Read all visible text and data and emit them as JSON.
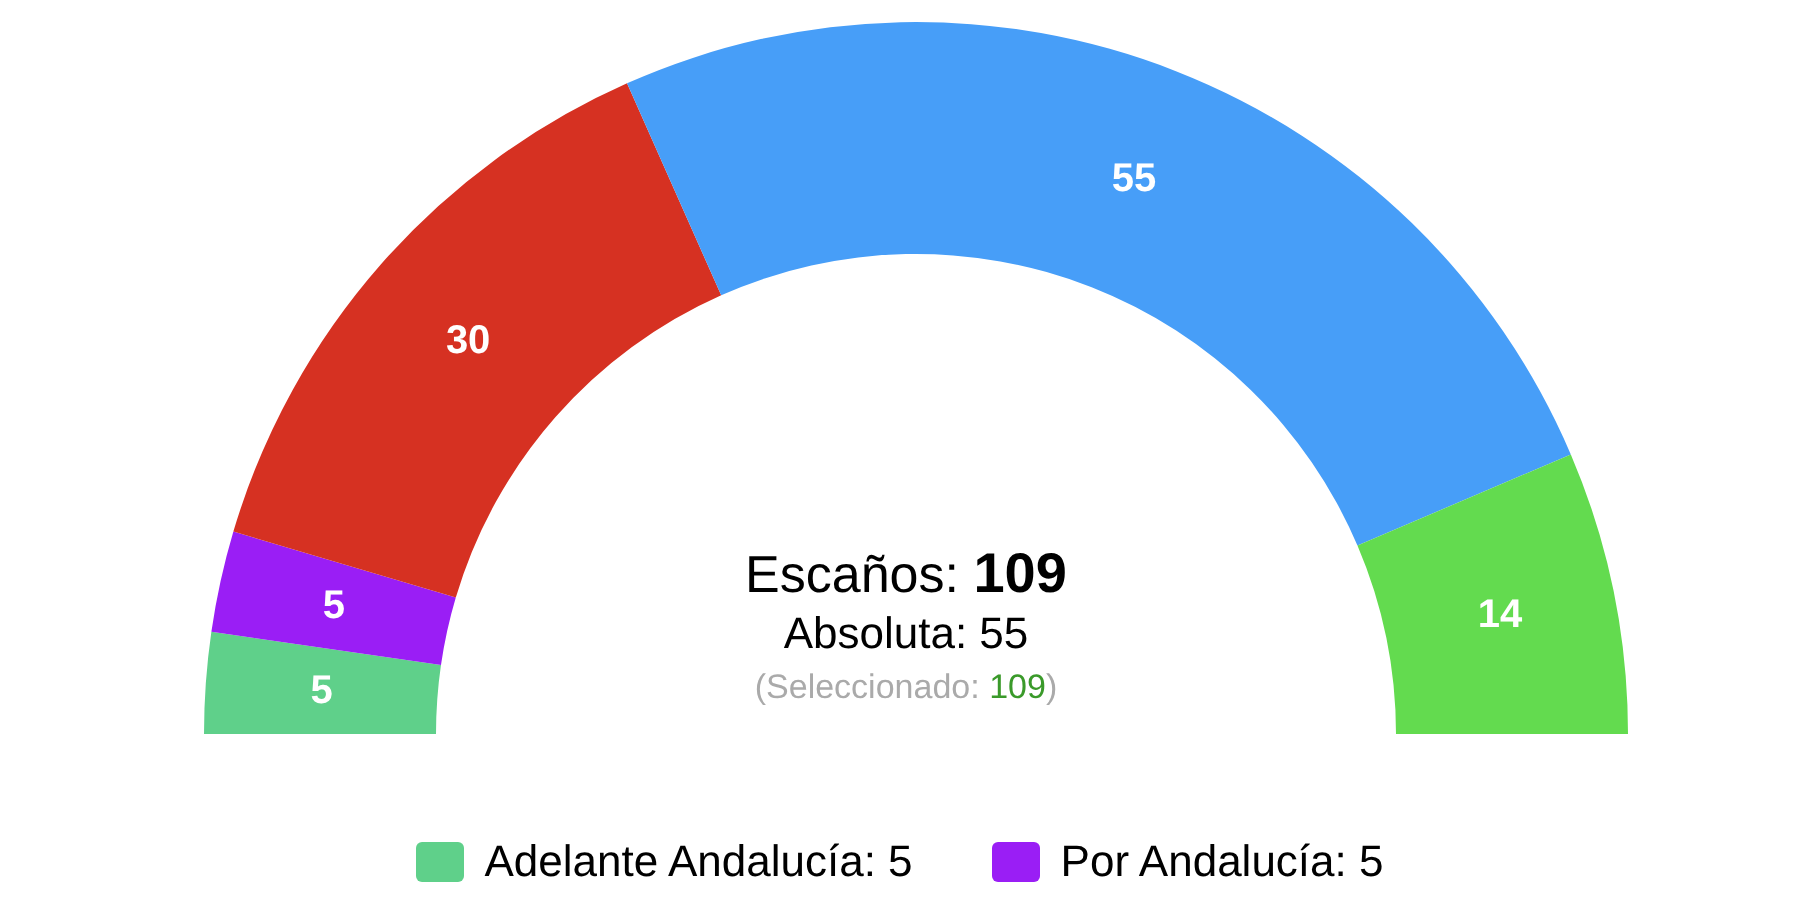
{
  "chart_data": {
    "type": "donut",
    "categories": [
      "Adelante Andalucía: 5",
      "Por Andalucía: 5",
      null,
      null,
      null
    ],
    "values": [
      5,
      5,
      30,
      55,
      14
    ],
    "colors": [
      "#5fd08a",
      "#9a1ef5",
      "#d63122",
      "#479ef8",
      "#63db4f"
    ],
    "data_labels": true,
    "legend": "bottom",
    "annotations": [
      "Escaños: 109",
      "Absoluta: 55",
      "(Seleccionado: 109)"
    ]
  }
}
